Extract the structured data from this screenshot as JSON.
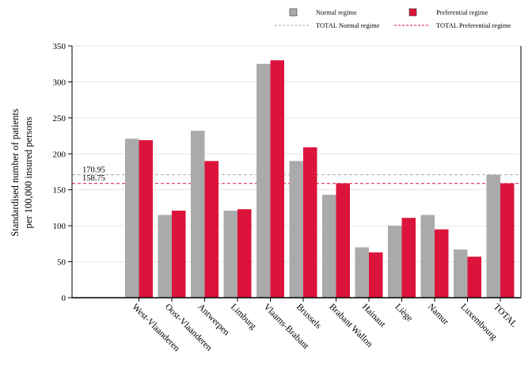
{
  "chart_data": {
    "type": "bar",
    "categories": [
      "West-Vlaanderen",
      "Oost-Vlaanderen",
      "Antwerpen",
      "Limburg",
      "Vlaams-Brabant",
      "Brussels",
      "Brabant Wallon",
      "Hainaut",
      "Liège",
      "Namur",
      "Luxembourg",
      "TOTAL"
    ],
    "series": [
      {
        "name": "Normal regime",
        "color": "#aaaaaa",
        "values": [
          221,
          115,
          232,
          121,
          325,
          190,
          143,
          70,
          100,
          115,
          67,
          171
        ]
      },
      {
        "name": "Preferential regime",
        "color": "#dc143c",
        "values": [
          219,
          121,
          190,
          123,
          330,
          209,
          159,
          63,
          111,
          95,
          57,
          159
        ]
      }
    ],
    "reference_lines": [
      {
        "name": "TOTAL Normal regime",
        "value": 170.95,
        "label": "170.95",
        "color": "#aaaaaa",
        "style": "dashed"
      },
      {
        "name": "TOTAL Preferential regime",
        "value": 158.75,
        "label": "158.75",
        "color": "#dc143c",
        "style": "dashed"
      }
    ],
    "title": "",
    "xlabel": "",
    "ylabel": [
      "Standardised number of patients",
      "per 100,000 insured persons"
    ],
    "ylim": [
      0,
      350
    ],
    "yticks": [
      0,
      50,
      100,
      150,
      200,
      250,
      300,
      350
    ],
    "grid": true,
    "legend_position": "top-right"
  }
}
